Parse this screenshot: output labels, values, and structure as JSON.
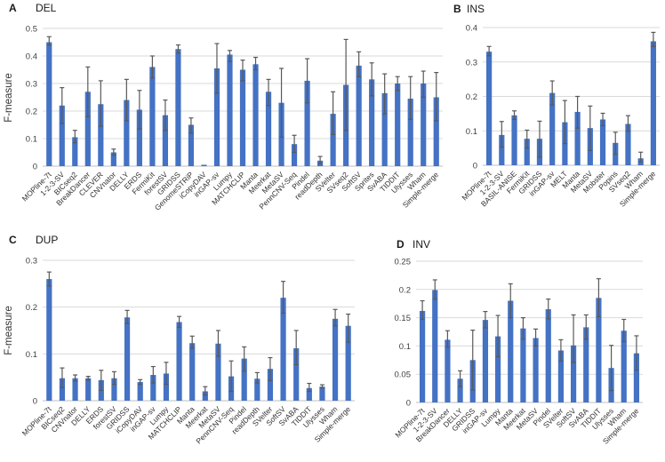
{
  "figure": {
    "ylabel": "F-measure",
    "background": "#FFFFFF",
    "gridline_color": "#D9D9D9",
    "axis_color": "#BFBFBF"
  },
  "chart_data": [
    {
      "type": "bar",
      "panel": "A",
      "title": "DEL",
      "ylabel": "F-measure",
      "ylim": [
        0,
        0.5
      ],
      "yticks": [
        "0",
        "0.1",
        "0.2",
        "0.3",
        "0.4",
        "0.5"
      ],
      "grid": true,
      "legend": "none",
      "bar_color": "#4472C4",
      "error_color": "#595959",
      "categories": [
        "MOPline-7t",
        "1-2-3-SV",
        "BICseq2",
        "BreakDancer",
        "CLEVER",
        "CNVnator",
        "DELLY",
        "ERDS",
        "FermiKit",
        "forestSV",
        "GRIDSS",
        "GenomeSTRiP",
        "iCopyDAV",
        "inGAP-sv",
        "Lumpy",
        "MATCHCLIP",
        "Manta",
        "Meerkat",
        "MetaSV",
        "PennCNV-Seq",
        "Pindel",
        "readDepth",
        "SVelter",
        "SVseq2",
        "SoftSV",
        "Sprites",
        "SvABA",
        "TIDDIT",
        "Ulysses",
        "Wham",
        "Simple-merge"
      ],
      "values": [
        0.45,
        0.22,
        0.105,
        0.27,
        0.225,
        0.05,
        0.24,
        0.205,
        0.36,
        0.185,
        0.425,
        0.15,
        0.005,
        0.355,
        0.405,
        0.35,
        0.37,
        0.27,
        0.23,
        0.08,
        0.31,
        0.02,
        0.19,
        0.295,
        0.365,
        0.315,
        0.265,
        0.3,
        0.245,
        0.3,
        0.25
      ],
      "err_low": [
        0.44,
        0.155,
        0.085,
        0.18,
        0.145,
        0.04,
        0.165,
        0.135,
        0.32,
        0.13,
        0.41,
        0.12,
        0.005,
        0.265,
        0.38,
        0.31,
        0.35,
        0.22,
        0.105,
        0.05,
        0.23,
        0.01,
        0.115,
        0.13,
        0.325,
        0.255,
        0.19,
        0.275,
        0.17,
        0.25,
        0.165
      ],
      "err_high": [
        0.47,
        0.285,
        0.13,
        0.36,
        0.31,
        0.062,
        0.315,
        0.275,
        0.4,
        0.24,
        0.44,
        0.175,
        0.005,
        0.445,
        0.42,
        0.385,
        0.395,
        0.315,
        0.355,
        0.112,
        0.39,
        0.035,
        0.27,
        0.46,
        0.415,
        0.375,
        0.335,
        0.325,
        0.325,
        0.345,
        0.34
      ]
    },
    {
      "type": "bar",
      "panel": "B",
      "title": "INS",
      "ylim": [
        0,
        0.4
      ],
      "yticks": [
        "0",
        "0.1",
        "0.2",
        "0.3",
        "0.4"
      ],
      "grid": true,
      "legend": "none",
      "bar_color": "#4472C4",
      "error_color": "#595959",
      "categories": [
        "MOPline-7t",
        "1-2-3-SV",
        "BASIL-ANISE",
        "FermiKit",
        "GRIDSS",
        "inGAP-sv",
        "MELT",
        "Manta",
        "MetaSV",
        "Mobster",
        "Popins",
        "SVseq2",
        "Wham",
        "Simple-merge"
      ],
      "values": [
        0.33,
        0.088,
        0.145,
        0.077,
        0.077,
        0.21,
        0.125,
        0.155,
        0.108,
        0.133,
        0.065,
        0.12,
        0.02,
        0.36
      ],
      "err_low": [
        0.318,
        0.053,
        0.133,
        0.05,
        0.024,
        0.175,
        0.063,
        0.108,
        0.043,
        0.115,
        0.032,
        0.099,
        0.01,
        0.345
      ],
      "err_high": [
        0.345,
        0.127,
        0.158,
        0.102,
        0.128,
        0.245,
        0.188,
        0.2,
        0.172,
        0.151,
        0.096,
        0.144,
        0.038,
        0.386
      ]
    },
    {
      "type": "bar",
      "panel": "C",
      "title": "DUP",
      "ylabel": "F-measure",
      "ylim": [
        0,
        0.3
      ],
      "yticks": [
        "0",
        "0.1",
        "0.2",
        "0.3"
      ],
      "grid": true,
      "legend": "none",
      "bar_color": "#4472C4",
      "error_color": "#595959",
      "categories": [
        "MOPline-7t",
        "BICseq2",
        "CNVnator",
        "DELLY",
        "ERDS",
        "forestSV",
        "GRIDSS",
        "iCopyDAV",
        "inGAP-sv",
        "Lumpy",
        "MATCHCLIP",
        "Manta",
        "Meerkat",
        "MetaSV",
        "PennCNV-Seq",
        "Pindel",
        "readDepth",
        "SVelter",
        "SoftSV",
        "SvABA",
        "TIDDIT",
        "Ulysses",
        "Wham",
        "Simple-merge"
      ],
      "values": [
        0.26,
        0.048,
        0.048,
        0.048,
        0.044,
        0.048,
        0.178,
        0.04,
        0.055,
        0.058,
        0.168,
        0.123,
        0.02,
        0.122,
        0.052,
        0.09,
        0.047,
        0.068,
        0.22,
        0.112,
        0.027,
        0.03,
        0.175,
        0.16
      ],
      "err_low": [
        0.245,
        0.028,
        0.042,
        0.044,
        0.022,
        0.035,
        0.165,
        0.035,
        0.038,
        0.035,
        0.157,
        0.112,
        0.012,
        0.095,
        0.02,
        0.063,
        0.038,
        0.043,
        0.187,
        0.077,
        0.02,
        0.027,
        0.16,
        0.125
      ],
      "err_high": [
        0.275,
        0.07,
        0.055,
        0.052,
        0.065,
        0.062,
        0.193,
        0.045,
        0.073,
        0.082,
        0.18,
        0.138,
        0.03,
        0.15,
        0.085,
        0.115,
        0.06,
        0.092,
        0.255,
        0.15,
        0.037,
        0.034,
        0.195,
        0.185
      ]
    },
    {
      "type": "bar",
      "panel": "D",
      "title": "INV",
      "ylim": [
        0,
        0.25
      ],
      "yticks": [
        "0",
        "0.05",
        "0.1",
        "0.15",
        "0.2",
        "0.25"
      ],
      "grid": true,
      "legend": "none",
      "bar_color": "#4472C4",
      "error_color": "#595959",
      "categories": [
        "MOPline-7t",
        "1-2-3-SV",
        "BreakDancer",
        "DELLY",
        "GRIDSS",
        "inGAP-sv",
        "Lumpy",
        "Manta",
        "Meerkat",
        "MetaSV",
        "Pindel",
        "SVelter",
        "SoftSV",
        "SvABA",
        "TIDDIT",
        "Ulysses",
        "Wham",
        "Simple-merge"
      ],
      "values": [
        0.162,
        0.199,
        0.111,
        0.042,
        0.075,
        0.146,
        0.117,
        0.18,
        0.131,
        0.114,
        0.165,
        0.092,
        0.101,
        0.133,
        0.185,
        0.061,
        0.127,
        0.087
      ],
      "err_low": [
        0.147,
        0.183,
        0.098,
        0.028,
        0.022,
        0.132,
        0.081,
        0.15,
        0.112,
        0.1,
        0.148,
        0.073,
        0.071,
        0.112,
        0.152,
        0.021,
        0.108,
        0.057
      ],
      "err_high": [
        0.18,
        0.217,
        0.127,
        0.056,
        0.128,
        0.161,
        0.154,
        0.21,
        0.15,
        0.13,
        0.183,
        0.111,
        0.155,
        0.155,
        0.219,
        0.101,
        0.147,
        0.118
      ]
    }
  ]
}
